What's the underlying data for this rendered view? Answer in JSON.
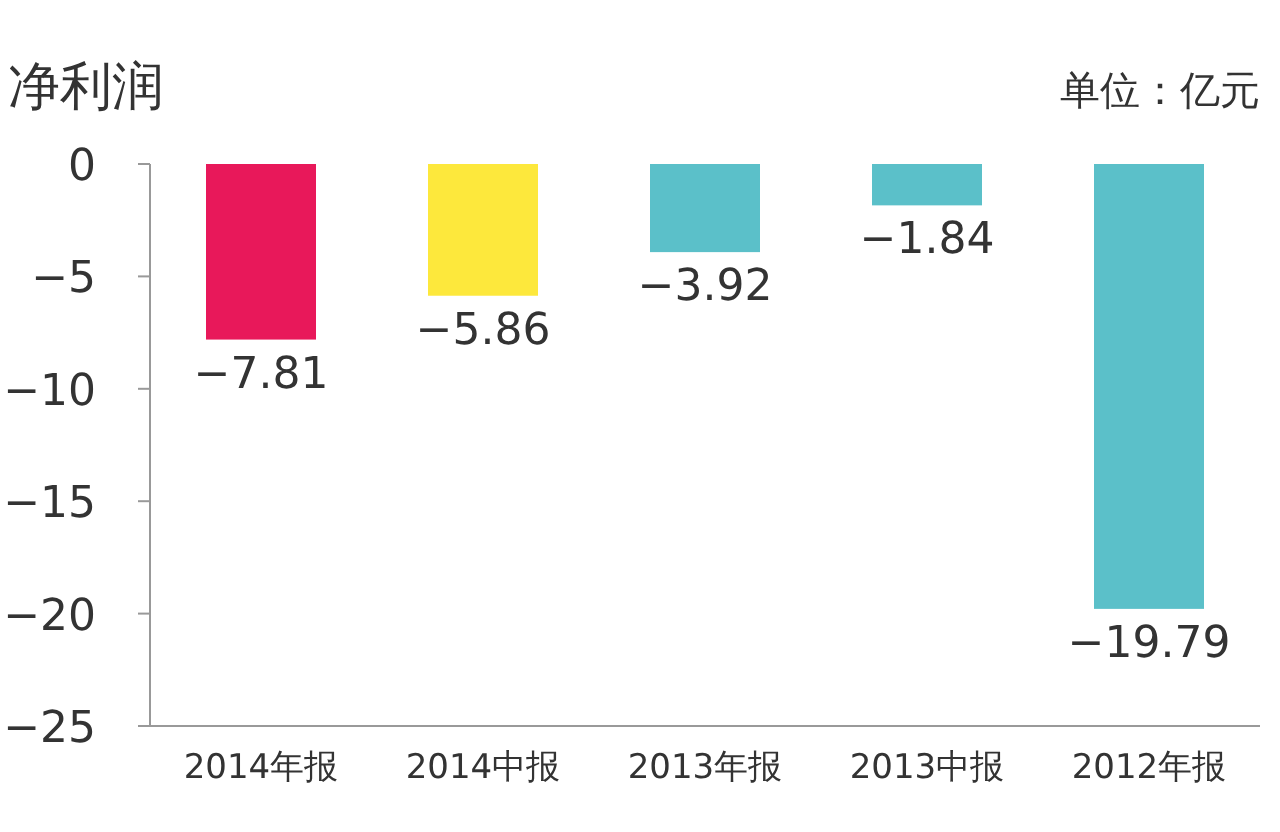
{
  "chart_data": {
    "type": "bar",
    "title": "净利润",
    "annotations": [
      "单位：亿元"
    ],
    "categories": [
      "2014年报",
      "2014中报",
      "2013年报",
      "2013中报",
      "2012年报"
    ],
    "values": [
      -7.81,
      -5.86,
      -3.92,
      -1.84,
      -19.79
    ],
    "colors": [
      "#e8185a",
      "#fde83c",
      "#5bc0c9",
      "#5bc0c9",
      "#5bc0c9"
    ],
    "value_labels": [
      "−7.81",
      "−5.86",
      "−3.92",
      "−1.84",
      "−19.79"
    ],
    "ylim": [
      -25,
      0
    ],
    "yticks": [
      0,
      {
        "value": -5,
        "label": "−5"
      },
      {
        "value": -10,
        "label": "−10"
      },
      {
        "value": -15,
        "label": "−15"
      },
      {
        "value": -20,
        "label": "−20"
      },
      {
        "value": -25,
        "label": "−25"
      }
    ]
  }
}
